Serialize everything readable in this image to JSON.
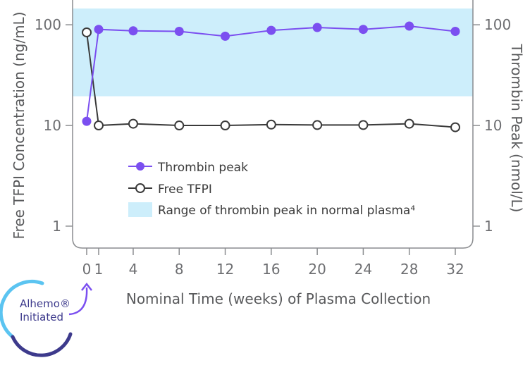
{
  "chart_data": {
    "type": "line",
    "x": [
      0,
      1,
      4,
      8,
      12,
      16,
      20,
      24,
      28,
      32
    ],
    "x_tick_labels": [
      "0",
      "1",
      "4",
      "8",
      "12",
      "16",
      "20",
      "24",
      "28",
      "32"
    ],
    "xlabel": "Nominal Time (weeks) of Plasma Collection",
    "ylabel_left": "Free TFPI Concentration (ng/mL)",
    "ylabel_right": "Thrombin Peak (nmol/L)",
    "yscale": "log",
    "ylim": [
      0.55,
      150
    ],
    "y_ticks": [
      1,
      10,
      100
    ],
    "y_tick_labels": [
      "1",
      "10",
      "100"
    ],
    "series": [
      {
        "name": "Thrombin peak",
        "color": "#7b4ff0",
        "marker": "filled-circle",
        "values": [
          11,
          90,
          87,
          86,
          77,
          88,
          94,
          90,
          97,
          86
        ]
      },
      {
        "name": "Free TFPI",
        "color": "#3a3a3a",
        "marker": "open-circle",
        "values": [
          84,
          10,
          10.4,
          10,
          10,
          10.2,
          10.1,
          10.1,
          10.4,
          9.6
        ]
      }
    ],
    "band": {
      "name": "Range of thrombin peak in normal plasma⁴",
      "color": "#cdeefb",
      "ymin": 19.5,
      "ymax": 145
    },
    "legend_position": "inside-lower-left",
    "grid": false
  },
  "badge": {
    "line1": "Alhemo®",
    "line2": "Initiated",
    "colors": [
      "#5bc4f1",
      "#3d3a8c",
      "#7b4ff0"
    ]
  }
}
